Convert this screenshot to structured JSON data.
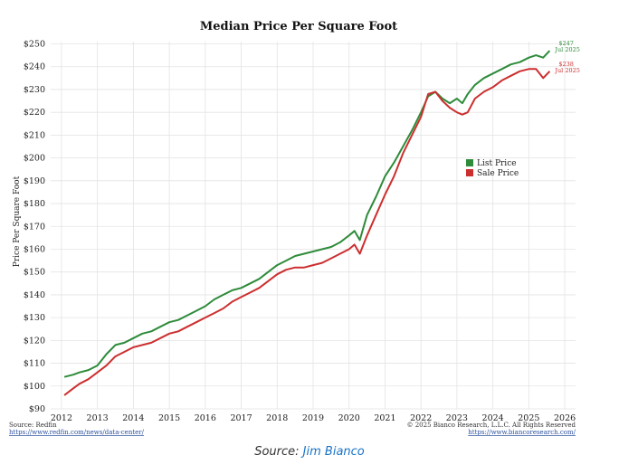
{
  "chart_data": {
    "type": "line",
    "title": "Median Price Per Square Foot",
    "xlabel": "",
    "ylabel": "Price Per Square Foot",
    "xlim": [
      2011.7,
      2026.3
    ],
    "ylim": [
      90,
      251
    ],
    "x_ticks": [
      "2012",
      "2013",
      "2014",
      "2015",
      "2016",
      "2017",
      "2018",
      "2019",
      "2020",
      "2021",
      "2022",
      "2023",
      "2024",
      "2025",
      "2026"
    ],
    "y_ticks": [
      "$90",
      "$100",
      "$110",
      "$120",
      "$130",
      "$140",
      "$150",
      "$160",
      "$170",
      "$180",
      "$190",
      "$200",
      "$210",
      "$220",
      "$230",
      "$240",
      "$250"
    ],
    "legend_position": "right-middle",
    "series": [
      {
        "name": "List Price",
        "color": "#2e8b3a",
        "x": [
          2012.08,
          2012.33,
          2012.5,
          2012.75,
          2013.0,
          2013.25,
          2013.5,
          2013.75,
          2014.0,
          2014.25,
          2014.5,
          2014.75,
          2015.0,
          2015.25,
          2015.5,
          2015.75,
          2016.0,
          2016.25,
          2016.5,
          2016.75,
          2017.0,
          2017.25,
          2017.5,
          2017.75,
          2018.0,
          2018.25,
          2018.5,
          2018.75,
          2019.0,
          2019.25,
          2019.5,
          2019.75,
          2020.0,
          2020.15,
          2020.3,
          2020.5,
          2020.75,
          2021.0,
          2021.25,
          2021.5,
          2021.75,
          2022.0,
          2022.2,
          2022.4,
          2022.6,
          2022.8,
          2023.0,
          2023.15,
          2023.3,
          2023.5,
          2023.75,
          2024.0,
          2024.25,
          2024.5,
          2024.75,
          2025.0,
          2025.2,
          2025.4,
          2025.58
        ],
        "values": [
          104,
          105,
          106,
          107,
          109,
          114,
          118,
          119,
          121,
          123,
          124,
          126,
          128,
          129,
          131,
          133,
          135,
          138,
          140,
          142,
          143,
          145,
          147,
          150,
          153,
          155,
          157,
          158,
          159,
          160,
          161,
          163,
          166,
          168,
          164,
          175,
          183,
          192,
          198,
          205,
          212,
          220,
          227,
          229,
          226,
          224,
          226,
          224,
          228,
          232,
          235,
          237,
          239,
          241,
          242,
          244,
          245,
          244,
          247
        ]
      },
      {
        "name": "Sale Price",
        "color": "#cc2f2f",
        "x": [
          2012.08,
          2012.33,
          2012.5,
          2012.75,
          2013.0,
          2013.25,
          2013.5,
          2013.75,
          2014.0,
          2014.25,
          2014.5,
          2014.75,
          2015.0,
          2015.25,
          2015.5,
          2015.75,
          2016.0,
          2016.25,
          2016.5,
          2016.75,
          2017.0,
          2017.25,
          2017.5,
          2017.75,
          2018.0,
          2018.25,
          2018.5,
          2018.75,
          2019.0,
          2019.25,
          2019.5,
          2019.75,
          2020.0,
          2020.15,
          2020.3,
          2020.5,
          2020.75,
          2021.0,
          2021.25,
          2021.5,
          2021.75,
          2022.0,
          2022.2,
          2022.4,
          2022.6,
          2022.8,
          2023.0,
          2023.15,
          2023.3,
          2023.5,
          2023.75,
          2024.0,
          2024.25,
          2024.5,
          2024.75,
          2025.0,
          2025.2,
          2025.4,
          2025.58
        ],
        "values": [
          96,
          99,
          101,
          103,
          106,
          109,
          113,
          115,
          117,
          118,
          119,
          121,
          123,
          124,
          126,
          128,
          130,
          132,
          134,
          137,
          139,
          141,
          143,
          146,
          149,
          151,
          152,
          152,
          153,
          154,
          156,
          158,
          160,
          162,
          158,
          166,
          175,
          184,
          192,
          202,
          210,
          218,
          228,
          229,
          225,
          222,
          220,
          219,
          220,
          226,
          229,
          231,
          234,
          236,
          238,
          239,
          239,
          235,
          238
        ]
      }
    ],
    "end_labels": [
      {
        "series": "List Price",
        "value": "$247",
        "date": "Jul 2025"
      },
      {
        "series": "Sale Price",
        "value": "$238",
        "date": "Jul 2025"
      }
    ]
  },
  "footer": {
    "source_label": "Source: Redfin",
    "source_url": "https://www.redfin.com/news/data-center/",
    "copyright": "© 2025 Bianco Research, L.L.C. All Rights Reserved",
    "research_url": "https://www.biancoresearch.com/"
  },
  "caption": {
    "prefix": "Source: ",
    "author": "Jim Bianco"
  }
}
